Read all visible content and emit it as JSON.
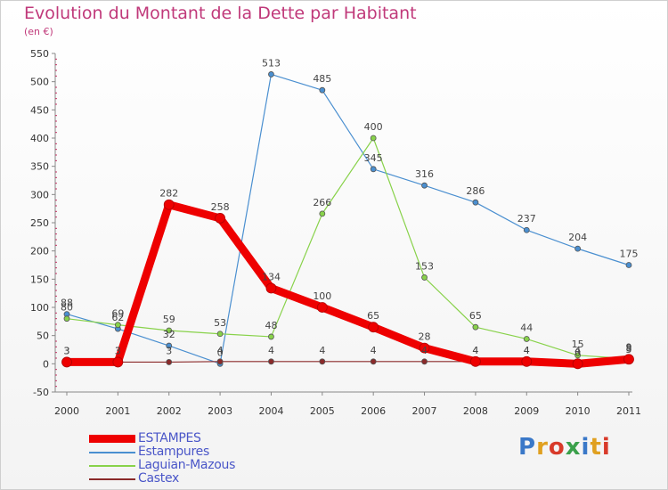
{
  "title": "Evolution du Montant de la Dette par Habitant",
  "subtitle": "(en €)",
  "logo_text": "Proxiti",
  "chart_data": {
    "type": "line",
    "x": [
      "2000",
      "2001",
      "2002",
      "2003",
      "2004",
      "2005",
      "2006",
      "2007",
      "2008",
      "2009",
      "2010",
      "2011"
    ],
    "ylim": [
      -50,
      550
    ],
    "yticks": [
      -50,
      0,
      50,
      100,
      150,
      200,
      250,
      300,
      350,
      400,
      450,
      500,
      550
    ],
    "grid": false,
    "legend_position": "bottom-left",
    "series": [
      {
        "name": "ESTAMPES",
        "color": "#ee0000",
        "thick": true,
        "values": [
          3,
          3,
          282,
          258,
          134,
          100,
          65,
          28,
          4,
          4,
          0,
          8
        ]
      },
      {
        "name": "Estampures",
        "color": "#4a8fd0",
        "thick": false,
        "values": [
          88,
          62,
          32,
          0,
          513,
          485,
          345,
          316,
          286,
          237,
          204,
          175
        ]
      },
      {
        "name": "Laguian-Mazous",
        "color": "#88d24a",
        "thick": false,
        "values": [
          80,
          69,
          59,
          53,
          48,
          266,
          400,
          153,
          65,
          44,
          15,
          9
        ]
      },
      {
        "name": "Castex",
        "color": "#8b2a2a",
        "thick": false,
        "values": [
          3,
          3,
          3,
          4,
          4,
          4,
          4,
          4,
          4,
          4,
          4,
          5
        ]
      }
    ]
  }
}
